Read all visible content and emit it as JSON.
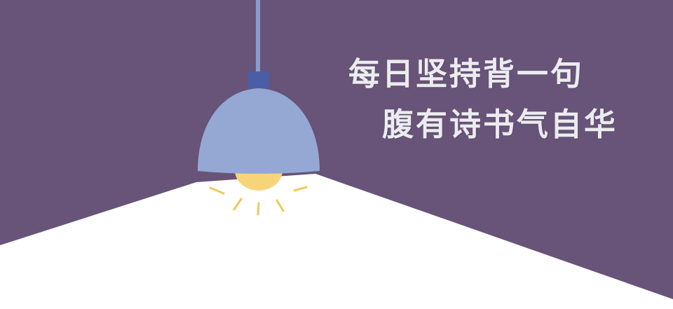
{
  "poster": {
    "line1": "每日坚持背一句",
    "line2": "腹有诗书气自华"
  },
  "illustration": {
    "icon": "pendant-lamp-icon",
    "colors": {
      "wall": "#675478",
      "floor": "#ffffff",
      "cord": "#8a9ccf",
      "shade": "#95a8d4",
      "cap": "#4a5ea8",
      "bulb": "#f6d57a",
      "rays": "#f0c95a"
    }
  }
}
